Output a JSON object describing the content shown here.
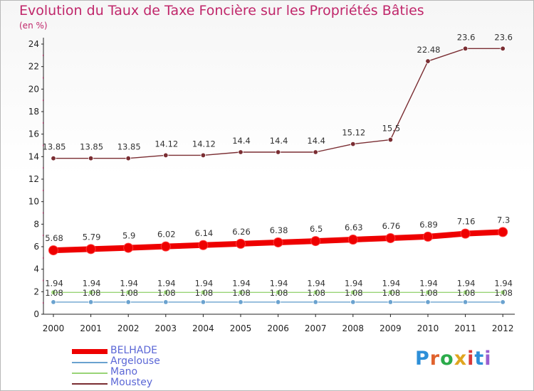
{
  "title": "Evolution du Taux de Taxe Foncière sur les Propriétés Bâties",
  "unit": "(en %)",
  "logo": {
    "text": "Proxiti",
    "colors": [
      "#2d8fd8",
      "#e0622d",
      "#2bab4a",
      "#e0a51f",
      "#d93a3a",
      "#2d8fd8",
      "#9a5fd0"
    ]
  },
  "chart_data": {
    "type": "line",
    "title": "Evolution du Taux de Taxe Foncière sur les Propriétés Bâties",
    "ylabel": "(en %)",
    "xlabel": "",
    "ylim": [
      0,
      24
    ],
    "yticks": [
      "0",
      "2",
      "4",
      "6",
      "8",
      "10",
      "12",
      "14",
      "16",
      "18",
      "20",
      "22",
      "24"
    ],
    "categories": [
      "2000",
      "2001",
      "2002",
      "2003",
      "2004",
      "2005",
      "2006",
      "2007",
      "2008",
      "2009",
      "2010",
      "2011",
      "2012"
    ],
    "grid": false,
    "legend_position": "bottom-left",
    "series": [
      {
        "name": "BELHADE",
        "color": "#ee0000",
        "emphasis": "thick",
        "values": [
          5.68,
          5.79,
          5.9,
          6.02,
          6.14,
          6.26,
          6.38,
          6.5,
          6.63,
          6.76,
          6.89,
          7.16,
          7.3
        ],
        "labels": [
          "5.68",
          "5.79",
          "5.9",
          "6.02",
          "6.14",
          "6.26",
          "6.38",
          "6.5",
          "6.63",
          "6.76",
          "6.89",
          "7.16",
          "7.3"
        ]
      },
      {
        "name": "Argelouse",
        "color": "#6aa2cf",
        "emphasis": "thin",
        "values": [
          1.08,
          1.08,
          1.08,
          1.08,
          1.08,
          1.08,
          1.08,
          1.08,
          1.08,
          1.08,
          1.08,
          1.08,
          1.08
        ],
        "labels": [
          "1.08",
          "1.08",
          "1.08",
          "1.08",
          "1.08",
          "1.08",
          "1.08",
          "1.08",
          "1.08",
          "1.08",
          "1.08",
          "1.08",
          "1.08"
        ]
      },
      {
        "name": "Mano",
        "color": "#99d476",
        "emphasis": "thin",
        "values": [
          1.94,
          1.94,
          1.94,
          1.94,
          1.94,
          1.94,
          1.94,
          1.94,
          1.94,
          1.94,
          1.94,
          1.94,
          1.94
        ],
        "labels": [
          "1.94",
          "1.94",
          "1.94",
          "1.94",
          "1.94",
          "1.94",
          "1.94",
          "1.94",
          "1.94",
          "1.94",
          "1.94",
          "1.94",
          "1.94"
        ]
      },
      {
        "name": "Moustey",
        "color": "#7a2d32",
        "emphasis": "thin",
        "values": [
          13.85,
          13.85,
          13.85,
          14.12,
          14.12,
          14.4,
          14.4,
          14.4,
          15.12,
          15.5,
          22.48,
          23.6,
          23.6
        ],
        "labels": [
          "13.85",
          "13.85",
          "13.85",
          "14.12",
          "14.12",
          "14.4",
          "14.4",
          "14.4",
          "15.12",
          "15.5",
          "22.48",
          "23.6",
          "23.6"
        ]
      }
    ]
  }
}
